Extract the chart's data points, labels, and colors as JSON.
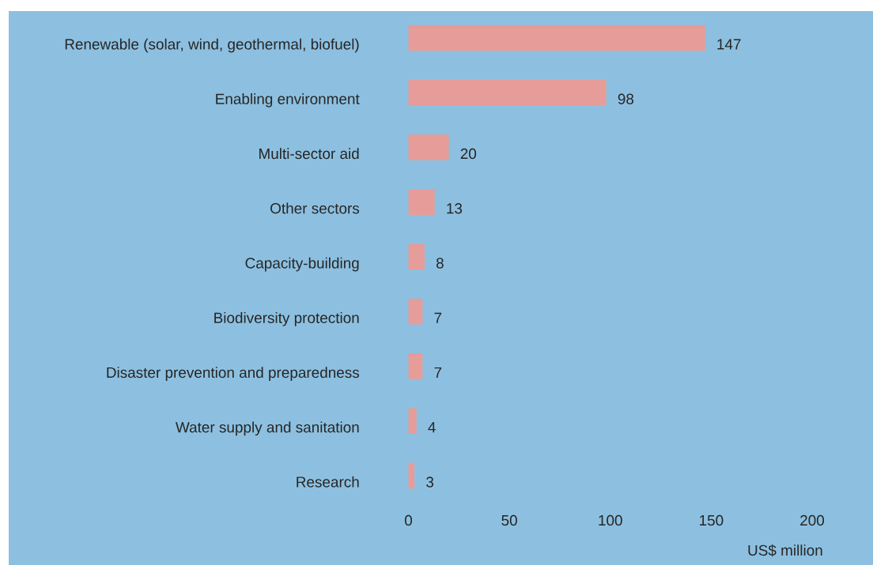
{
  "chart_data": {
    "type": "bar",
    "orientation": "horizontal",
    "categories": [
      "Renewable (solar, wind, geothermal, biofuel)",
      "Enabling environment",
      "Multi-sector aid",
      "Other sectors",
      "Capacity-building",
      "Biodiversity protection",
      "Disaster prevention and preparedness",
      "Water supply and sanitation",
      "Research"
    ],
    "values": [
      147,
      98,
      20,
      13,
      8,
      7,
      7,
      4,
      3
    ],
    "color": "#e69c98",
    "xlim": [
      0,
      200
    ],
    "xticks": [
      0,
      50,
      100,
      150,
      200
    ],
    "xlabel": "US$ million",
    "data_labels": true
  }
}
